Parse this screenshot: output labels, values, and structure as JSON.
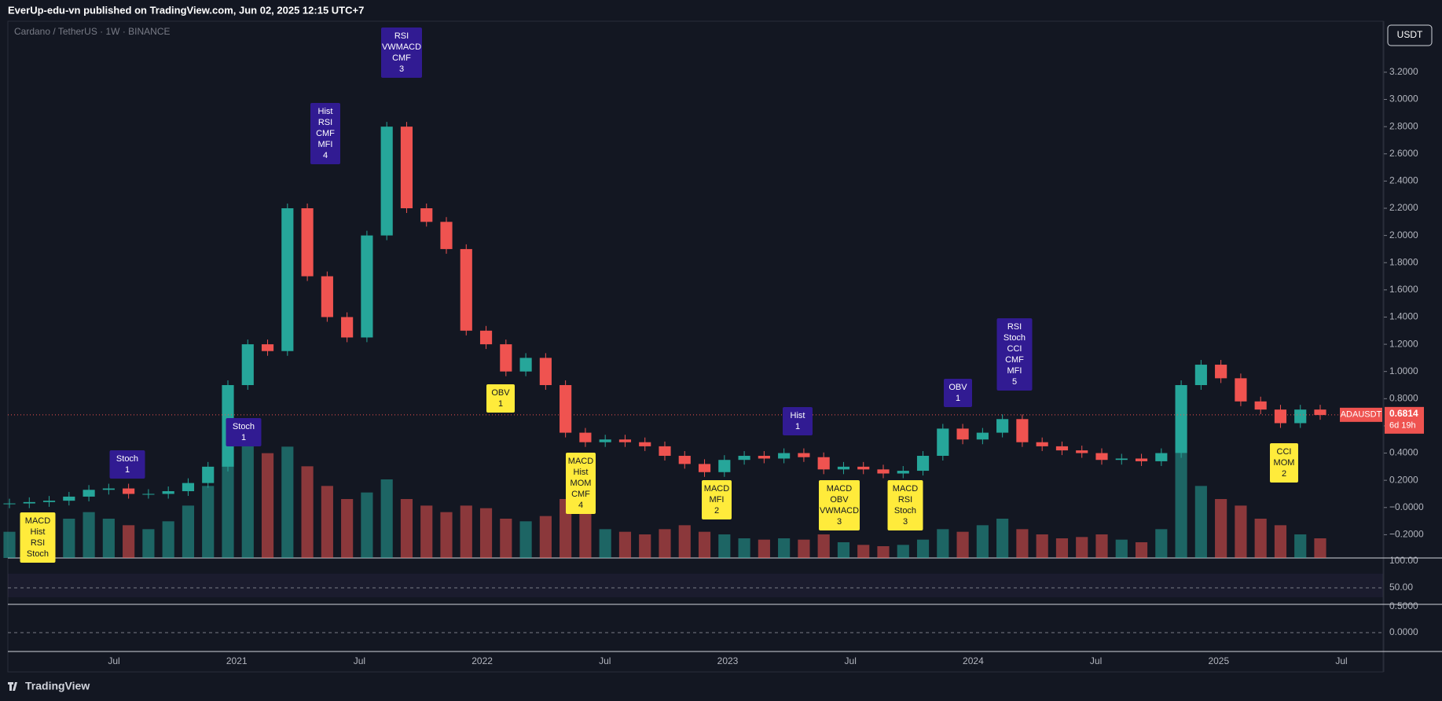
{
  "header": {
    "title": "EverUp-edu-vn published on TradingView.com, Jun 02, 2025 12:15 UTC+7"
  },
  "footer": {
    "brand": "TradingView"
  },
  "chart_data": {
    "type": "candlestick",
    "title": "Cardano / TetherUS · 1W · BINANCE",
    "currency": "USDT",
    "symbol": "ADAUSDT",
    "last_price": 0.6814,
    "countdown": "6d 19h",
    "colors": {
      "up": "#26a69a",
      "down": "#ef5350"
    },
    "values": [
      0.03,
      0.04,
      0.05,
      0.08,
      0.13,
      0.14,
      0.1,
      0.1,
      0.12,
      0.18,
      0.3,
      0.9,
      1.2,
      1.15,
      2.2,
      1.7,
      1.4,
      1.25,
      2.0,
      2.8,
      2.2,
      2.1,
      1.9,
      1.3,
      1.2,
      1.0,
      1.1,
      0.9,
      0.55,
      0.48,
      0.5,
      0.48,
      0.45,
      0.38,
      0.32,
      0.26,
      0.35,
      0.38,
      0.36,
      0.4,
      0.37,
      0.28,
      0.3,
      0.28,
      0.25,
      0.27,
      0.38,
      0.58,
      0.5,
      0.55,
      0.65,
      0.48,
      0.45,
      0.42,
      0.4,
      0.35,
      0.36,
      0.34,
      0.4,
      0.9,
      1.05,
      0.95,
      0.78,
      0.72,
      0.62,
      0.72,
      0.68
    ],
    "volume": [
      20,
      25,
      22,
      30,
      35,
      30,
      25,
      22,
      28,
      40,
      55,
      75,
      90,
      80,
      85,
      70,
      55,
      45,
      50,
      60,
      45,
      40,
      35,
      40,
      38,
      30,
      28,
      32,
      45,
      35,
      22,
      20,
      18,
      22,
      25,
      20,
      18,
      15,
      14,
      15,
      14,
      18,
      12,
      10,
      9,
      10,
      14,
      22,
      20,
      25,
      30,
      22,
      18,
      15,
      16,
      18,
      14,
      12,
      22,
      80,
      55,
      45,
      40,
      30,
      25,
      18,
      15
    ],
    "ylim": [
      -0.371,
      3.575
    ],
    "yticks": [
      {
        "value": 3.2,
        "label": "3.2000"
      },
      {
        "value": 3.0,
        "label": "3.0000"
      },
      {
        "value": 2.8,
        "label": "2.8000"
      },
      {
        "value": 2.6,
        "label": "2.6000"
      },
      {
        "value": 2.4,
        "label": "2.4000"
      },
      {
        "value": 2.2,
        "label": "2.2000"
      },
      {
        "value": 2.0,
        "label": "2.0000"
      },
      {
        "value": 1.8,
        "label": "1.8000"
      },
      {
        "value": 1.6,
        "label": "1.6000"
      },
      {
        "value": 1.4,
        "label": "1.4000"
      },
      {
        "value": 1.2,
        "label": "1.2000"
      },
      {
        "value": 1.0,
        "label": "1.0000"
      },
      {
        "value": 0.8,
        "label": "0.8000"
      },
      {
        "value": 0.6,
        "label": "0.6000"
      },
      {
        "value": 0.4,
        "label": "0.4000"
      },
      {
        "value": 0.2,
        "label": "0.2000"
      },
      {
        "value": 0,
        "label": "−0.0000"
      },
      {
        "value": -0.2,
        "label": "−0.2000"
      }
    ],
    "time_labels": [
      "Jul",
      "2021",
      "Jul",
      "2022",
      "Jul",
      "2023",
      "Jul",
      "2024",
      "Jul",
      "2025",
      "Jul"
    ],
    "rsi_ticks": [
      "100.00",
      "50.00"
    ],
    "macd_ticks": [
      "0.5000",
      "0.0000"
    ],
    "annotations": [
      {
        "lines": [
          "MACD",
          "Hist",
          "RSI",
          "Stoch"
        ],
        "kind": "bull"
      },
      {
        "lines": [
          "Stoch",
          "1"
        ],
        "kind": "bear"
      },
      {
        "lines": [
          "Stoch",
          "1"
        ],
        "kind": "bear"
      },
      {
        "lines": [
          "Hist",
          "RSI",
          "CMF",
          "MFI",
          "4"
        ],
        "kind": "bear"
      },
      {
        "lines": [
          "RSI",
          "VWMACD",
          "CMF",
          "3"
        ],
        "kind": "bear"
      },
      {
        "lines": [
          "OBV",
          "1"
        ],
        "kind": "bull"
      },
      {
        "lines": [
          "MACD",
          "Hist",
          "MOM",
          "CMF",
          "4"
        ],
        "kind": "bull"
      },
      {
        "lines": [
          "MACD",
          "MFI",
          "2"
        ],
        "kind": "bull"
      },
      {
        "lines": [
          "Hist",
          "1"
        ],
        "kind": "bear"
      },
      {
        "lines": [
          "MACD",
          "OBV",
          "VWMACD",
          "3"
        ],
        "kind": "bull"
      },
      {
        "lines": [
          "MACD",
          "RSI",
          "Stoch",
          "3"
        ],
        "kind": "bull"
      },
      {
        "lines": [
          "OBV",
          "1"
        ],
        "kind": "bear"
      },
      {
        "lines": [
          "RSI",
          "Stoch",
          "CCI",
          "CMF",
          "MFI",
          "5"
        ],
        "kind": "bear"
      },
      {
        "lines": [
          "CCI",
          "MOM",
          "2"
        ],
        "kind": "bull"
      }
    ]
  }
}
